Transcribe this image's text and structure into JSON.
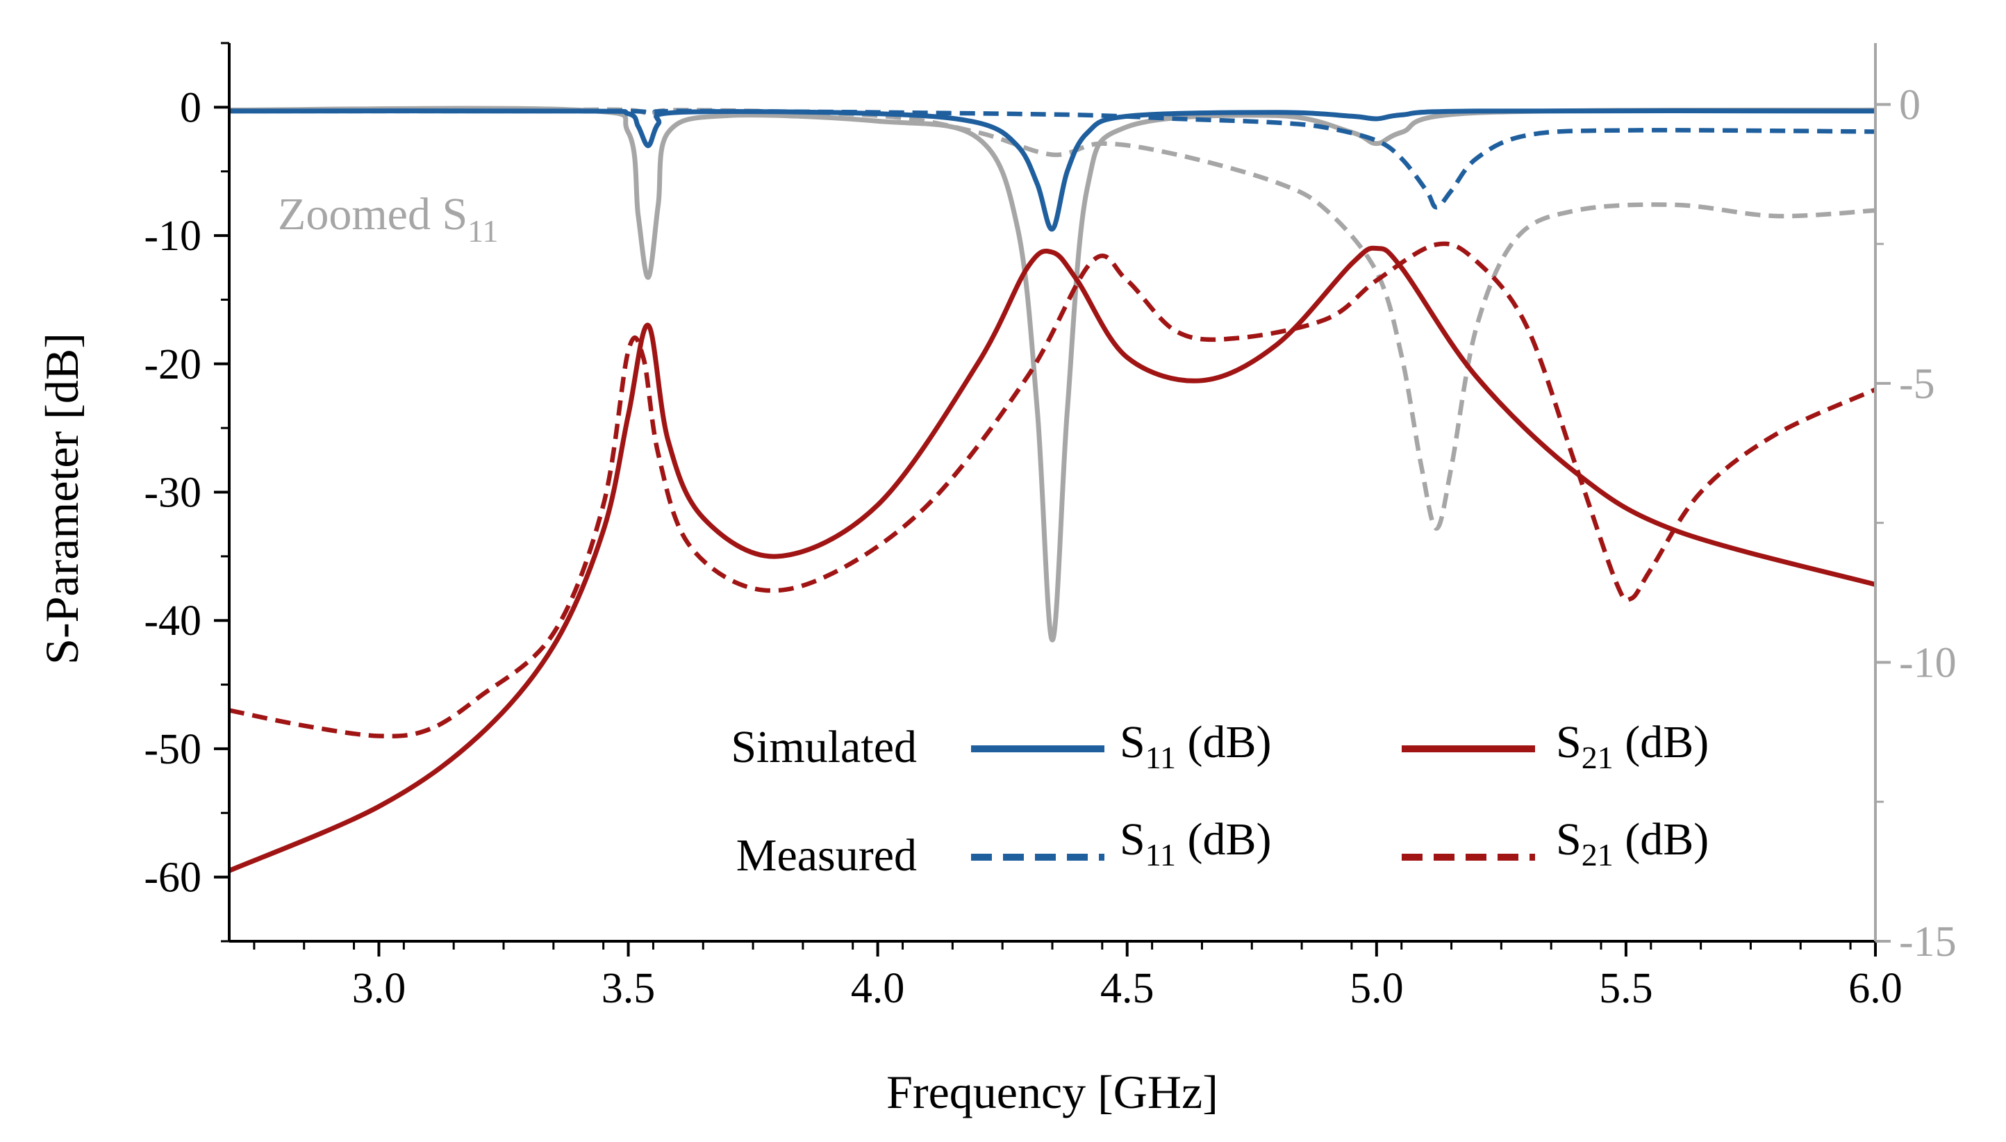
{
  "chart_data": {
    "type": "line",
    "xlabel": "Frequency [GHz]",
    "ylabel": "S-Parameter [dB]",
    "xlim": [
      2.7,
      6.0
    ],
    "ylim": [
      -65,
      5
    ],
    "y2lim": [
      -15,
      1.1
    ],
    "x_ticks": [
      "3.0",
      "3.5",
      "4.0",
      "4.5",
      "5.0",
      "5.5",
      "6.0"
    ],
    "y_ticks": [
      "0",
      "-10",
      "-20",
      "-30",
      "-40",
      "-50",
      "-60"
    ],
    "y2_ticks": [
      "0",
      "-5",
      "-10",
      "-15"
    ],
    "annotation": {
      "text": "Zoomed S",
      "sub": "11"
    },
    "legend": {
      "row_simulated": "Simulated",
      "row_measured": "Measured",
      "s11_label": "S",
      "s11_sub": "11",
      "s11_unit": " (dB)",
      "s21_label": "S",
      "s21_sub": "21",
      "s21_unit": " (dB)"
    },
    "series": [
      {
        "name": "Simulated S11 (dB)",
        "axis": "left",
        "color": "#1f5f9e",
        "dash": "solid",
        "x": [
          2.7,
          3.4,
          3.5,
          3.52,
          3.54,
          3.56,
          3.6,
          4.0,
          4.2,
          4.28,
          4.32,
          4.35,
          4.38,
          4.42,
          4.5,
          4.8,
          4.95,
          5.0,
          5.05,
          5.2,
          6.0
        ],
        "y": [
          -0.3,
          -0.3,
          -0.5,
          -1.5,
          -3.0,
          -1.3,
          -0.4,
          -0.5,
          -1.2,
          -3.0,
          -6.0,
          -9.5,
          -5.0,
          -2.0,
          -0.7,
          -0.4,
          -0.7,
          -0.9,
          -0.6,
          -0.3,
          -0.3
        ]
      },
      {
        "name": "Measured S11 (dB)",
        "axis": "left",
        "color": "#1f5f9e",
        "dash": "dashed",
        "x": [
          2.7,
          3.3,
          3.5,
          3.55,
          3.6,
          4.0,
          4.4,
          4.6,
          4.8,
          4.9,
          5.0,
          5.05,
          5.1,
          5.12,
          5.15,
          5.2,
          5.3,
          5.5,
          6.0
        ],
        "y": [
          -0.3,
          -0.3,
          -0.3,
          -0.4,
          -0.3,
          -0.4,
          -0.6,
          -0.9,
          -1.2,
          -1.6,
          -2.6,
          -4.0,
          -6.5,
          -7.8,
          -6.5,
          -4.0,
          -2.2,
          -1.8,
          -1.9
        ]
      },
      {
        "name": "Simulated S21 (dB)",
        "axis": "left",
        "color": "#a01414",
        "dash": "solid",
        "x": [
          2.7,
          3.0,
          3.2,
          3.35,
          3.45,
          3.5,
          3.54,
          3.58,
          3.65,
          3.8,
          4.0,
          4.2,
          4.3,
          4.35,
          4.4,
          4.5,
          4.65,
          4.8,
          4.95,
          5.0,
          5.05,
          5.2,
          5.4,
          5.6,
          6.0
        ],
        "y": [
          -59.5,
          -54.5,
          -49,
          -42,
          -33,
          -24,
          -17,
          -26,
          -32,
          -35,
          -31,
          -20,
          -12.5,
          -11.3,
          -13.5,
          -19.5,
          -21.3,
          -18.5,
          -12.2,
          -11,
          -12.5,
          -21,
          -28.5,
          -33,
          -37.2
        ]
      },
      {
        "name": "Measured S21 (dB)",
        "axis": "left",
        "color": "#a01414",
        "dash": "dashed",
        "x": [
          2.7,
          2.85,
          3.0,
          3.1,
          3.2,
          3.35,
          3.45,
          3.5,
          3.53,
          3.56,
          3.62,
          3.75,
          3.9,
          4.1,
          4.3,
          4.43,
          4.5,
          4.6,
          4.72,
          4.9,
          5.0,
          5.12,
          5.2,
          5.3,
          5.4,
          5.48,
          5.51,
          5.55,
          5.65,
          5.8,
          6.0
        ],
        "y": [
          -47,
          -48.2,
          -49,
          -48.5,
          -46,
          -41,
          -31,
          -19,
          -19.5,
          -27,
          -34,
          -37.5,
          -36.5,
          -31,
          -21,
          -12,
          -13.5,
          -17.5,
          -18,
          -16.5,
          -13.5,
          -10.7,
          -12,
          -17,
          -28,
          -37,
          -38.3,
          -36,
          -30,
          -25.5,
          -22
        ]
      },
      {
        "name": "Zoomed Simulated S11",
        "axis": "right",
        "color": "#a6a6a6",
        "dash": "solid",
        "x": [
          2.7,
          3.4,
          3.5,
          3.52,
          3.54,
          3.56,
          3.58,
          3.7,
          4.0,
          4.2,
          4.28,
          4.32,
          4.35,
          4.38,
          4.42,
          4.5,
          4.8,
          4.95,
          5.0,
          5.05,
          5.2,
          6.0
        ],
        "y": [
          -0.1,
          -0.1,
          -0.5,
          -2.0,
          -3.1,
          -1.8,
          -0.5,
          -0.2,
          -0.3,
          -0.6,
          -2.2,
          -5.5,
          -9.6,
          -5.5,
          -1.5,
          -0.4,
          -0.2,
          -0.5,
          -0.7,
          -0.5,
          -0.15,
          -0.1
        ]
      },
      {
        "name": "Zoomed Measured S11",
        "axis": "right",
        "color": "#a6a6a6",
        "dash": "dashed",
        "x": [
          2.7,
          3.3,
          3.5,
          3.55,
          3.6,
          4.0,
          4.2,
          4.35,
          4.45,
          4.6,
          4.8,
          4.9,
          5.0,
          5.05,
          5.09,
          5.12,
          5.15,
          5.2,
          5.28,
          5.4,
          5.6,
          5.8,
          6.0
        ],
        "y": [
          -0.1,
          -0.1,
          -0.1,
          -0.2,
          -0.1,
          -0.2,
          -0.5,
          -0.9,
          -0.7,
          -0.9,
          -1.4,
          -1.9,
          -3.0,
          -4.5,
          -6.5,
          -7.6,
          -6.5,
          -4.0,
          -2.4,
          -1.9,
          -1.8,
          -2.0,
          -1.9
        ]
      }
    ]
  }
}
